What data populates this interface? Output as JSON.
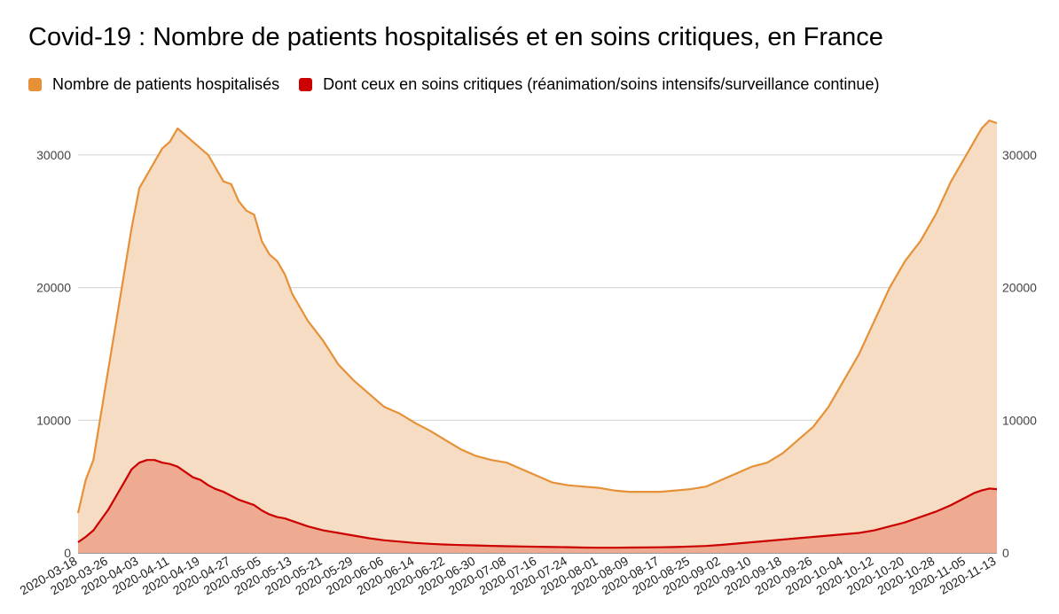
{
  "chart_data": {
    "type": "area",
    "title": "Covid-19 : Nombre de patients hospitalisés et en soins critiques, en France",
    "xlabel": "",
    "ylabel": "",
    "ylim": [
      0,
      33000
    ],
    "yticks": [
      "0",
      "10000",
      "20000",
      "30000"
    ],
    "yticks_right": [
      "0",
      "10000",
      "20000",
      "30000"
    ],
    "grid": true,
    "legend_position": "top",
    "x_tick_labels": [
      "2020-03-18",
      "2020-03-26",
      "2020-04-03",
      "2020-04-11",
      "2020-04-19",
      "2020-04-27",
      "2020-05-05",
      "2020-05-13",
      "2020-05-21",
      "2020-05-29",
      "2020-06-06",
      "2020-06-14",
      "2020-06-22",
      "2020-06-30",
      "2020-07-08",
      "2020-07-16",
      "2020-07-24",
      "2020-08-01",
      "2020-08-09",
      "2020-08-17",
      "2020-08-25",
      "2020-09-02",
      "2020-09-10",
      "2020-09-18",
      "2020-09-26",
      "2020-10-04",
      "2020-10-12",
      "2020-10-20",
      "2020-10-28",
      "2020-11-05",
      "2020-11-13"
    ],
    "x": [
      "2020-03-18",
      "2020-03-20",
      "2020-03-22",
      "2020-03-24",
      "2020-03-26",
      "2020-03-28",
      "2020-03-30",
      "2020-04-01",
      "2020-04-03",
      "2020-04-05",
      "2020-04-07",
      "2020-04-09",
      "2020-04-11",
      "2020-04-13",
      "2020-04-15",
      "2020-04-17",
      "2020-04-19",
      "2020-04-21",
      "2020-04-23",
      "2020-04-25",
      "2020-04-27",
      "2020-04-29",
      "2020-05-01",
      "2020-05-03",
      "2020-05-05",
      "2020-05-07",
      "2020-05-09",
      "2020-05-11",
      "2020-05-13",
      "2020-05-17",
      "2020-05-21",
      "2020-05-25",
      "2020-05-29",
      "2020-06-02",
      "2020-06-06",
      "2020-06-10",
      "2020-06-14",
      "2020-06-18",
      "2020-06-22",
      "2020-06-26",
      "2020-06-30",
      "2020-07-04",
      "2020-07-08",
      "2020-07-12",
      "2020-07-16",
      "2020-07-20",
      "2020-07-24",
      "2020-07-28",
      "2020-08-01",
      "2020-08-05",
      "2020-08-09",
      "2020-08-13",
      "2020-08-17",
      "2020-08-21",
      "2020-08-25",
      "2020-08-29",
      "2020-09-02",
      "2020-09-06",
      "2020-09-10",
      "2020-09-14",
      "2020-09-18",
      "2020-09-22",
      "2020-09-26",
      "2020-09-30",
      "2020-10-04",
      "2020-10-08",
      "2020-10-12",
      "2020-10-16",
      "2020-10-20",
      "2020-10-24",
      "2020-10-28",
      "2020-11-01",
      "2020-11-03",
      "2020-11-05",
      "2020-11-07",
      "2020-11-09",
      "2020-11-11",
      "2020-11-13"
    ],
    "series": [
      {
        "name": "Nombre de patients hospitalisés",
        "color": "#e69138",
        "fill": "#f6dcc2",
        "values": [
          3000,
          5500,
          7000,
          10500,
          14000,
          17500,
          21000,
          24500,
          27500,
          28500,
          29500,
          30500,
          31000,
          32000,
          31500,
          31000,
          30500,
          30000,
          29000,
          28000,
          27800,
          26500,
          25800,
          25500,
          23500,
          22500,
          22000,
          21000,
          19500,
          17500,
          16000,
          14200,
          13000,
          12000,
          11000,
          10500,
          9800,
          9200,
          8500,
          7800,
          7300,
          7000,
          6800,
          6300,
          5800,
          5300,
          5100,
          5000,
          4900,
          4700,
          4600,
          4600,
          4600,
          4700,
          4800,
          5000,
          5500,
          6000,
          6500,
          6800,
          7500,
          8500,
          9500,
          11000,
          13000,
          15000,
          17500,
          20000,
          22000,
          23500,
          25500,
          28000,
          29000,
          30000,
          31000,
          32000,
          32600,
          32400
        ],
        "_note": "values aligned with x array"
      },
      {
        "name": "Dont ceux en soins critiques (réanimation/soins intensifs/surveillance continue)",
        "color": "#cc0000",
        "fill": "#eeab92",
        "values": [
          800,
          1200,
          1700,
          2500,
          3300,
          4300,
          5300,
          6300,
          6800,
          7000,
          7000,
          6800,
          6700,
          6500,
          6100,
          5700,
          5500,
          5100,
          4800,
          4600,
          4300,
          4000,
          3800,
          3600,
          3200,
          2900,
          2700,
          2600,
          2400,
          2000,
          1700,
          1500,
          1300,
          1100,
          950,
          850,
          750,
          680,
          630,
          590,
          560,
          530,
          500,
          480,
          460,
          440,
          430,
          400,
          390,
          390,
          400,
          410,
          420,
          440,
          480,
          520,
          600,
          700,
          800,
          900,
          1000,
          1100,
          1200,
          1300,
          1400,
          1500,
          1700,
          2000,
          2300,
          2700,
          3100,
          3600,
          3900,
          4200,
          4500,
          4700,
          4850,
          4800
        ]
      }
    ]
  }
}
